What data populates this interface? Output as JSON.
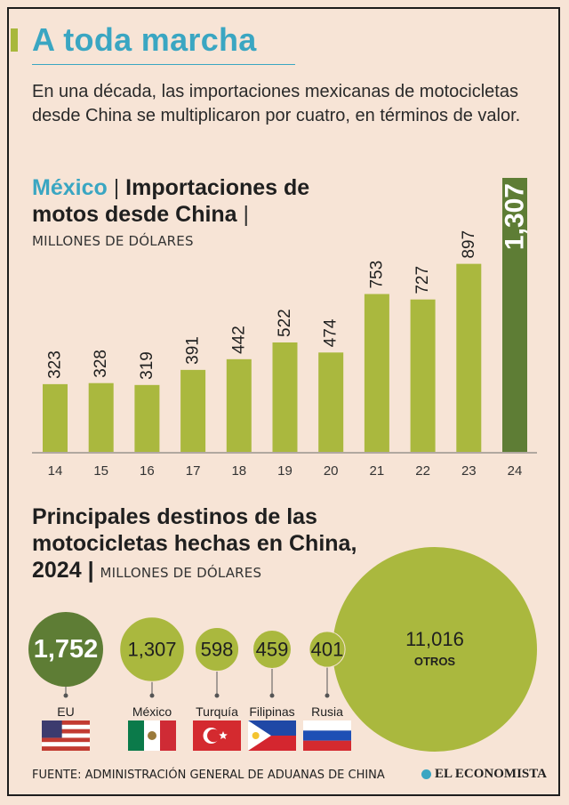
{
  "title": "A toda marcha",
  "subtitle": "En una década, las importaciones mexicanas de motocicletas desde China se multiplicaron por cuatro, en términos de valor.",
  "chart_data": [
    {
      "type": "bar",
      "title_country": "México",
      "title_rest": "Importaciones de motos desde China",
      "units": "MILLONES DE DÓLARES",
      "categories": [
        "14",
        "15",
        "16",
        "17",
        "18",
        "19",
        "20",
        "21",
        "22",
        "23",
        "24"
      ],
      "values": [
        323,
        328,
        319,
        391,
        442,
        522,
        474,
        753,
        727,
        897,
        1307
      ],
      "value_labels": [
        "323",
        "328",
        "319",
        "391",
        "442",
        "522",
        "474",
        "753",
        "727",
        "897",
        "1,307"
      ],
      "ylim": [
        0,
        1307
      ],
      "colors": {
        "bar": "#aab83e",
        "highlight": "#5e7d35"
      }
    },
    {
      "type": "bubble",
      "title": "Principales destinos de las motocicletas hechas en China, 2024",
      "units": "MILLONES DE DÓLARES",
      "items": [
        {
          "name": "EU",
          "value": 1752,
          "label": "1,752",
          "flag": "us-flag-icon"
        },
        {
          "name": "México",
          "value": 1307,
          "label": "1,307",
          "flag": "mexico-flag-icon"
        },
        {
          "name": "Turquía",
          "value": 598,
          "label": "598",
          "flag": "turkey-flag-icon"
        },
        {
          "name": "Filipinas",
          "value": 459,
          "label": "459",
          "flag": "philippines-flag-icon"
        },
        {
          "name": "Rusia",
          "value": 401,
          "label": "401",
          "flag": "russia-flag-icon"
        },
        {
          "name": "",
          "value": 11016,
          "label": "11,016",
          "sublabel": "OTROS"
        }
      ],
      "colors": {
        "bubble": "#aab83e",
        "highlight": "#5e7d35"
      }
    }
  ],
  "source": "FUENTE: ADMINISTRACIÓN GENERAL DE ADUANAS DE CHINA",
  "brand": "EL ECONOMISTA"
}
